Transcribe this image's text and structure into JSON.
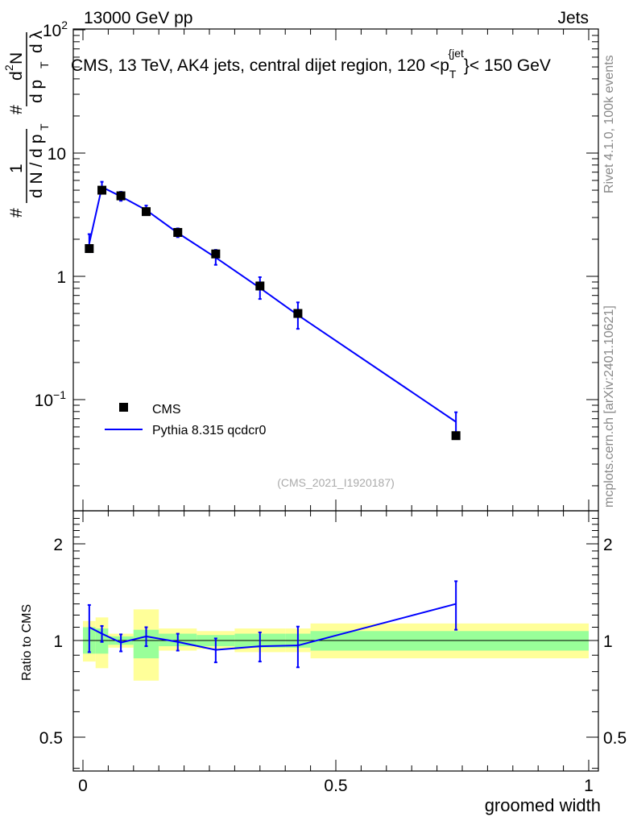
{
  "header": {
    "left": "13000 GeV pp",
    "right": "Jets"
  },
  "title": "CMS, 13 TeV, AK4 jets, central dijet region, 120 <p_T^{jet}< 150 GeV",
  "title_parts": {
    "prefix": "CMS, 13 TeV, AK4 jets, central dijet region, 120 <p",
    "sup": "{jet",
    "sub": "T",
    "suffix": "}< 150 GeV"
  },
  "side_labels": {
    "rivet": "Rivet 4.1.0,  100k events",
    "mcplots": "mcplots.cern.ch [arXiv:2401.10621]"
  },
  "analysis_id": "(CMS_2021_I1920187)",
  "chart_data": [
    {
      "type": "scatter",
      "panel": "main",
      "yscale": "log",
      "xlim": [
        0,
        1
      ],
      "ylim": [
        0.015,
        100
      ],
      "ylabel": "1/(dN/dp_T) d²N/(dp_T dλ)",
      "ylabel_parts": {
        "left_sym": "#",
        "left_frac_num": "1",
        "left_frac_den": "d N / d p",
        "left_sub": "T",
        "right_sym": "#",
        "right_num_d": "d",
        "right_num_sup": "2",
        "right_num_n": "N",
        "right_den": "d p",
        "right_den_sub": "T",
        "right_den_lambda": "d λ"
      },
      "y_tick_labels": [
        "10^{-1}",
        "1",
        "10",
        "10^{2}"
      ],
      "y_tick_values": [
        0.1,
        1,
        10,
        100
      ],
      "legend": [
        "CMS",
        "Pythia 8.315 qcdcr0"
      ],
      "series": [
        {
          "name": "CMS",
          "style": "markers",
          "color": "#000000",
          "x": [
            0.0125,
            0.0375,
            0.075,
            0.125,
            0.1875,
            0.2625,
            0.35,
            0.425,
            0.7375
          ],
          "y": [
            1.68,
            5.0,
            4.5,
            3.35,
            2.27,
            1.52,
            0.835,
            0.5,
            0.051
          ],
          "xerr": [
            0.0125,
            0.0125,
            0.025,
            0.025,
            0.0375,
            0.0375,
            0.05,
            0.025,
            0.2625
          ],
          "yerr_low": [
            0.1,
            0.2,
            0.15,
            0.12,
            0.08,
            0.05,
            0.03,
            0.03,
            0.003
          ],
          "yerr_high": [
            0.1,
            0.2,
            0.15,
            0.12,
            0.08,
            0.05,
            0.03,
            0.03,
            0.003
          ]
        },
        {
          "name": "Pythia 8.315 qcdcr0",
          "style": "line",
          "color": "#0000ff",
          "x": [
            0.0125,
            0.0375,
            0.075,
            0.125,
            0.1875,
            0.2625,
            0.35,
            0.425,
            0.7375
          ],
          "y": [
            1.85,
            5.3,
            4.45,
            3.45,
            2.25,
            1.42,
            0.805,
            0.485,
            0.066
          ],
          "err_low": [
            0.28,
            0.45,
            0.35,
            0.25,
            0.17,
            0.18,
            0.15,
            0.11,
            0.018
          ],
          "err_high": [
            0.35,
            0.55,
            0.4,
            0.3,
            0.2,
            0.22,
            0.18,
            0.13,
            0.013
          ]
        }
      ]
    },
    {
      "type": "line",
      "panel": "ratio",
      "yscale": "log",
      "xlim": [
        0,
        1
      ],
      "ylim": [
        0.4,
        2.5
      ],
      "xlabel": "groomed width",
      "ylabel": "Ratio to CMS",
      "y_tick_labels": [
        "0.5",
        "1",
        "2"
      ],
      "y_tick_values": [
        0.5,
        1,
        2
      ],
      "x_tick_labels": [
        "0",
        "0.5",
        "1"
      ],
      "x_tick_values": [
        0,
        0.5,
        1
      ],
      "reference_line": 1,
      "bands": [
        {
          "x0": 0.0,
          "x1": 0.025,
          "inner": [
            0.91,
            1.1
          ],
          "outer": [
            0.86,
            1.15
          ]
        },
        {
          "x0": 0.025,
          "x1": 0.05,
          "inner": [
            0.91,
            1.09
          ],
          "outer": [
            0.82,
            1.18
          ]
        },
        {
          "x0": 0.05,
          "x1": 0.1,
          "inner": [
            0.97,
            1.03
          ],
          "outer": [
            0.95,
            1.05
          ]
        },
        {
          "x0": 0.1,
          "x1": 0.15,
          "inner": [
            0.88,
            1.08
          ],
          "outer": [
            0.75,
            1.25
          ]
        },
        {
          "x0": 0.15,
          "x1": 0.225,
          "inner": [
            0.96,
            1.05
          ],
          "outer": [
            0.93,
            1.09
          ]
        },
        {
          "x0": 0.225,
          "x1": 0.3,
          "inner": [
            0.96,
            1.04
          ],
          "outer": [
            0.94,
            1.07
          ]
        },
        {
          "x0": 0.3,
          "x1": 0.4,
          "inner": [
            0.95,
            1.05
          ],
          "outer": [
            0.92,
            1.09
          ]
        },
        {
          "x0": 0.4,
          "x1": 0.45,
          "inner": [
            0.95,
            1.05
          ],
          "outer": [
            0.92,
            1.09
          ]
        },
        {
          "x0": 0.45,
          "x1": 1.0,
          "inner": [
            0.93,
            1.07
          ],
          "outer": [
            0.88,
            1.13
          ]
        }
      ],
      "band_colors": {
        "inner": "#99ff99",
        "outer": "#ffff99"
      },
      "series": [
        {
          "name": "Pythia 8.315 qcdcr0 / CMS",
          "color": "#0000ff",
          "x": [
            0.0125,
            0.0375,
            0.075,
            0.125,
            0.1875,
            0.2625,
            0.35,
            0.425,
            0.7375
          ],
          "y": [
            1.1,
            1.05,
            0.985,
            1.03,
            0.99,
            0.935,
            0.96,
            0.965,
            1.3
          ],
          "err_low": [
            0.18,
            0.06,
            0.06,
            0.07,
            0.06,
            0.08,
            0.1,
            0.14,
            0.22
          ],
          "err_high": [
            0.19,
            0.06,
            0.06,
            0.07,
            0.06,
            0.08,
            0.1,
            0.14,
            0.23
          ]
        }
      ]
    }
  ]
}
